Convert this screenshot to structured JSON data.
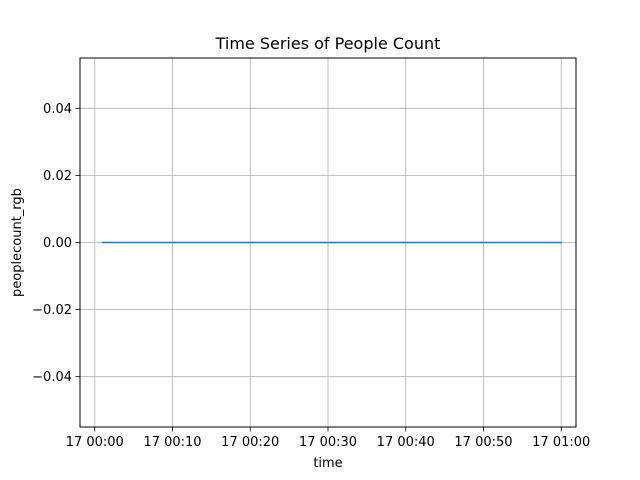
{
  "chart_data": {
    "type": "line",
    "title": "Time Series of People Count",
    "xlabel": "time",
    "ylabel": "peoplecount_rgb",
    "x_tick_labels": [
      "17 00:00",
      "17 00:10",
      "17 00:20",
      "17 00:30",
      "17 00:40",
      "17 00:50",
      "17 01:00"
    ],
    "x_tick_minutes": [
      0,
      10,
      20,
      30,
      40,
      50,
      60
    ],
    "xlim_minutes": [
      -1.9,
      61.9
    ],
    "y_ticks": [
      -0.04,
      -0.02,
      0.0,
      0.02,
      0.04
    ],
    "y_tick_labels": [
      "−0.04",
      "−0.02",
      "0.00",
      "0.02",
      "0.04"
    ],
    "ylim": [
      -0.055,
      0.055
    ],
    "grid": true,
    "series": [
      {
        "color": "#1f77b4",
        "x_minutes": [
          1,
          60
        ],
        "values": [
          0,
          0
        ]
      }
    ]
  }
}
